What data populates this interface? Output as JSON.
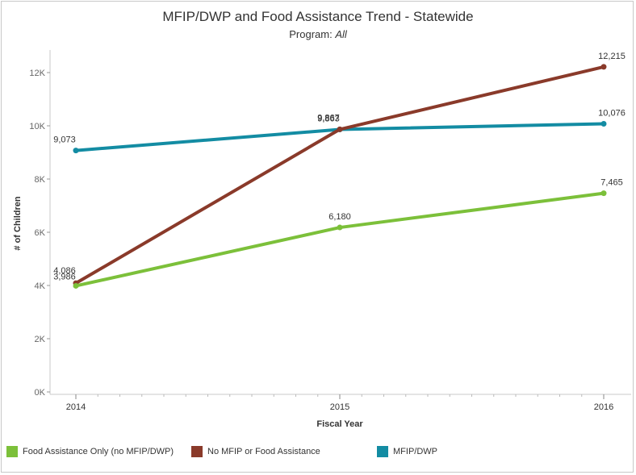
{
  "title": "MFIP/DWP and Food Assistance Trend - Statewide",
  "subtitle_label": "Program: ",
  "subtitle_value": "All",
  "legend": [
    {
      "label": "Food Assistance Only (no MFIP/DWP)",
      "color": "#7cc03a"
    },
    {
      "label": "No MFIP or Food Assistance",
      "color": "#8a3a2a"
    },
    {
      "label": "MFIP/DWP",
      "color": "#138ca3"
    }
  ],
  "chart_data": {
    "type": "line",
    "title": "MFIP/DWP and Food Assistance Trend - Statewide",
    "xlabel": "Fiscal Year",
    "ylabel": "# of Children",
    "x": [
      "2014",
      "2015",
      "2016"
    ],
    "ylim": [
      0,
      12800
    ],
    "yticks": [
      0,
      2000,
      4000,
      6000,
      8000,
      10000,
      12000
    ],
    "ytick_labels": [
      "0K",
      "2K",
      "4K",
      "6K",
      "8K",
      "10K",
      "12K"
    ],
    "series": [
      {
        "name": "MFIP/DWP",
        "color": "#138ca3",
        "values": [
          9073,
          9863,
          10076
        ],
        "labels": [
          "9,073",
          "9,863",
          "10,076"
        ]
      },
      {
        "name": "No MFIP or Food Assistance",
        "color": "#8a3a2a",
        "values": [
          4086,
          9867,
          12215
        ],
        "labels": [
          "4,086",
          "9,867",
          "12,215"
        ]
      },
      {
        "name": "Food Assistance Only (no MFIP/DWP)",
        "color": "#7cc03a",
        "values": [
          3986,
          6180,
          7465
        ],
        "labels": [
          "3,986",
          "6,180",
          "7,465"
        ]
      }
    ],
    "grid": false,
    "legend_position": "bottom"
  }
}
